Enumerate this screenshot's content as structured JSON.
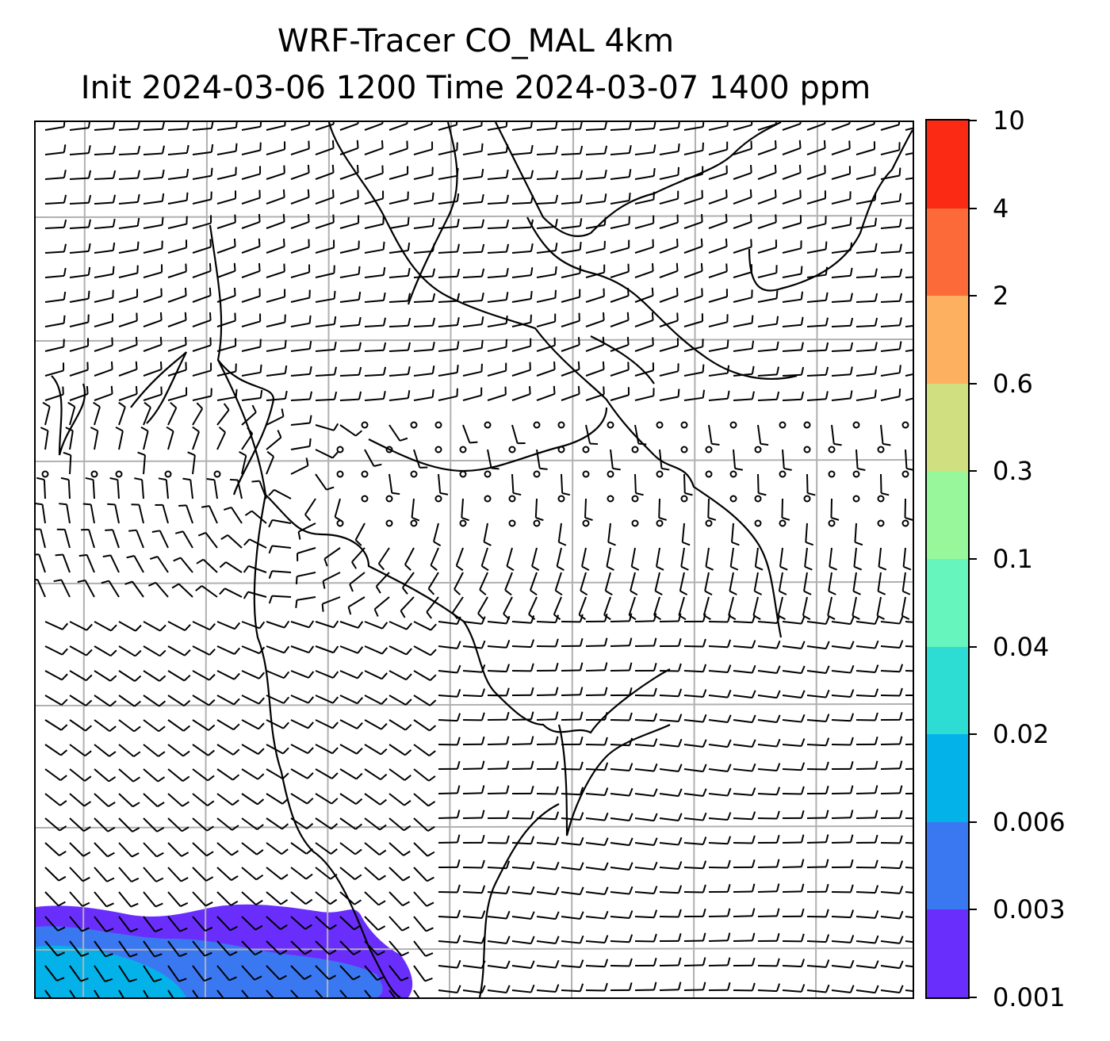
{
  "title": {
    "line1": "WRF-Tracer CO_MAL 4km",
    "line2": "Init 2024-03-06 1200 Time 2024-03-07 1400 ppm"
  },
  "colors": {
    "gridline": "#b0b0b0",
    "coastline": "#000000",
    "barb": "#000000"
  },
  "chart_data": {
    "type": "heatmap",
    "variable": "CO_MAL tracer",
    "units": "ppm",
    "overlay": "wind barbs",
    "grid": true,
    "colorbar": {
      "position": "right",
      "levels": [
        0.001,
        0.003,
        0.006,
        0.02,
        0.04,
        0.1,
        0.3,
        0.6,
        2,
        4,
        10
      ],
      "tick_labels": [
        "0.001",
        "0.003",
        "0.006",
        "0.02",
        "0.04",
        "0.1",
        "0.3",
        "0.6",
        "2",
        "4",
        "10"
      ],
      "colors": [
        "#6a2efc",
        "#3a78f2",
        "#03b2e8",
        "#2ddcd2",
        "#66f5bd",
        "#98f79a",
        "#d0e081",
        "#fcb060",
        "#fc6a3a",
        "#fa2a14"
      ]
    },
    "tracer_plume": {
      "location": "bottom-left",
      "max_band": "0.006 - 0.02",
      "bands": [
        "0.001 - 0.003",
        "0.003 - 0.006",
        "0.006 - 0.02"
      ]
    }
  }
}
